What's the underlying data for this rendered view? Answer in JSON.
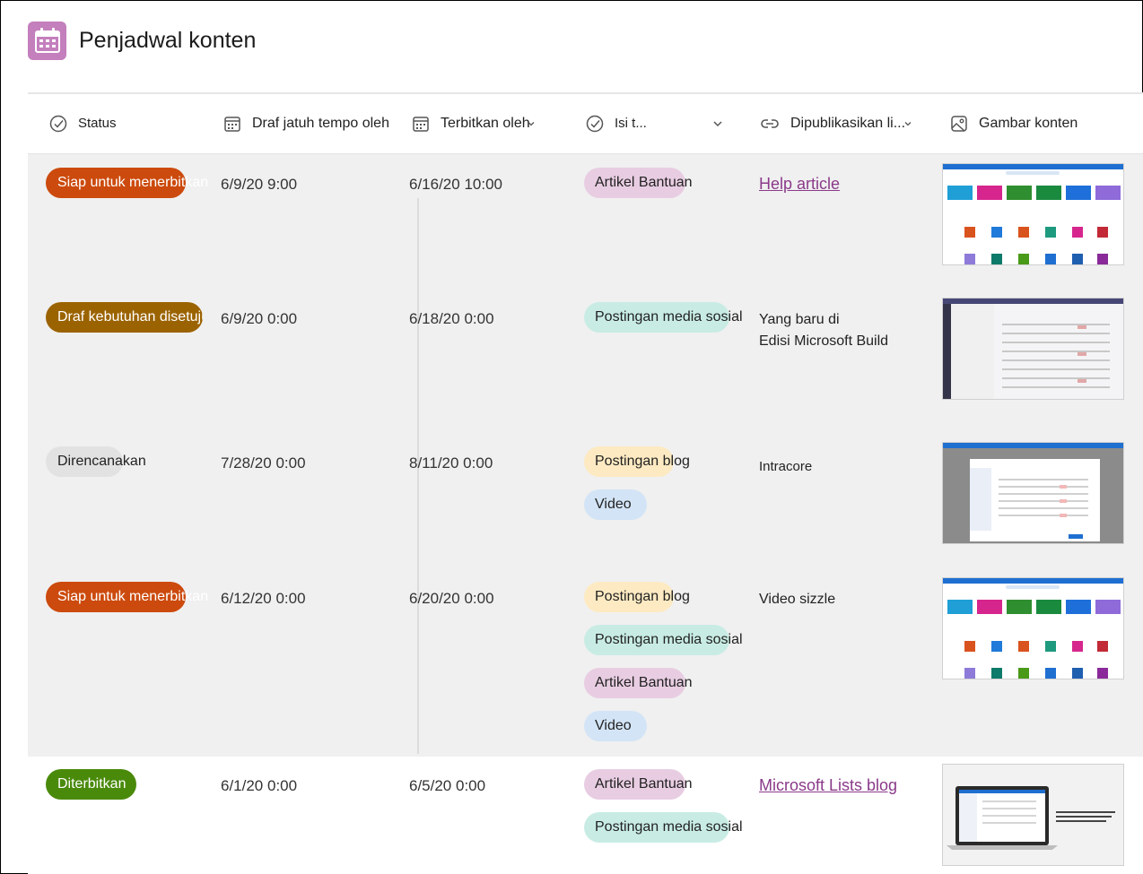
{
  "app": {
    "title": "Penjadwal konten",
    "icon": "calendar-icon",
    "accent": "#c47fbd"
  },
  "columns": [
    {
      "label": "Status",
      "icon": "status-check-icon"
    },
    {
      "label": "Draf jatuh tempo oleh",
      "icon": "calendar-icon"
    },
    {
      "label": "Terbitkan oleh",
      "icon": "calendar-icon"
    },
    {
      "label": "Isi t...",
      "icon": "status-check-icon"
    },
    {
      "label": "Dipublikasikan li...",
      "icon": "link-icon"
    },
    {
      "label": "Gambar konten",
      "icon": "image-icon"
    }
  ],
  "rows": [
    {
      "status": "Siap untuk menerbitkan",
      "status_color": "#cc4a0d",
      "draft_due": "6/9/20 9:00",
      "publish_by": "6/16/20 10:00",
      "content_types": [
        "Artikel Bantuan"
      ],
      "published_link": "Help article",
      "published_is_link": true,
      "thumbnail": "lists-home-screenshot"
    },
    {
      "status": "Draf kebutuhan disetujui",
      "status_color": "#9b6300",
      "draft_due": "6/9/20 0:00",
      "publish_by": "6/18/20 0:00",
      "content_types": [
        "Postingan media sosial"
      ],
      "published_link": "Yang baru di Edisi Microsoft Build",
      "published_line1": "Yang baru di",
      "published_line2": "Edisi Microsoft Build",
      "published_is_link": false,
      "thumbnail": "teams-lists-screenshot"
    },
    {
      "status": "Direncanakan",
      "status_color": "#e2e2e2",
      "draft_due": "7/28/20 0:00",
      "publish_by": "8/11/20 0:00",
      "content_types": [
        "Postingan blog",
        "Video"
      ],
      "published_link": "Intracore",
      "published_is_link": false,
      "thumbnail": "lists-dialog-screenshot"
    },
    {
      "status": "Siap untuk menerbitkan",
      "status_color": "#cc4a0d",
      "draft_due": "6/12/20 0:00",
      "publish_by": "6/20/20 0:00",
      "content_types": [
        "Postingan blog",
        "Postingan media sosial",
        "Artikel Bantuan",
        "Video"
      ],
      "published_link": "Video sizzle",
      "published_is_link": false,
      "thumbnail": "lists-home-screenshot"
    },
    {
      "status": "Diterbitkan",
      "status_color": "#4a8a0b",
      "draft_due": "6/1/20 0:00",
      "publish_by": "6/5/20 0:00",
      "content_types": [
        "Artikel Bantuan",
        "Postingan media sosial"
      ],
      "published_link": "Microsoft Lists blog",
      "published_is_link": true,
      "thumbnail": "laptop-lists-screenshot"
    }
  ]
}
